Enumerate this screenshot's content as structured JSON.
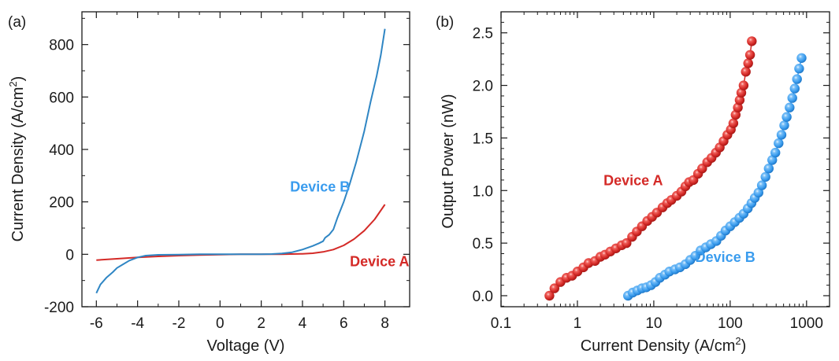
{
  "colors": {
    "device_a": "#d42a27",
    "device_b_line": "#2f86c4",
    "device_b_marker": "#3a9cee",
    "axis": "#1a1a1a"
  },
  "chart_data": [
    {
      "panel": "(a)",
      "type": "line",
      "title": "",
      "xlabel": "Voltage (V)",
      "ylabel": "Current Density (A/cm",
      "ylabel_sup": "2",
      "ylabel_tail": ")",
      "xlim": [
        -6.7,
        9.2
      ],
      "ylim": [
        -200,
        925
      ],
      "xticks": [
        -6,
        -4,
        -2,
        0,
        2,
        4,
        6,
        8
      ],
      "xtick_labels": [
        "-6",
        "-4",
        "-2",
        "0",
        "2",
        "4",
        "6",
        "8"
      ],
      "yticks": [
        -200,
        0,
        200,
        400,
        600,
        800
      ],
      "ytick_labels": [
        "-200",
        "0",
        "200",
        "400",
        "600",
        "800"
      ],
      "grid": false,
      "legend": "none",
      "annotations": [
        {
          "text": "Device B",
          "series": "Device B",
          "x": 3.4,
          "y": 240
        },
        {
          "text": "Device A",
          "series": "Device A",
          "x": 6.3,
          "y": -45
        }
      ],
      "series": [
        {
          "name": "Device A",
          "x": [
            -6,
            -5,
            -4,
            -3,
            -2,
            -1,
            0,
            1,
            2,
            3,
            4,
            4.5,
            5,
            5.5,
            6,
            6.5,
            7,
            7.5,
            8
          ],
          "y": [
            -22,
            -17,
            -12,
            -8,
            -5,
            -3,
            -1,
            0,
            0,
            0,
            2,
            4,
            9,
            18,
            34,
            58,
            90,
            133,
            190
          ]
        },
        {
          "name": "Device B",
          "x": [
            -6,
            -5.8,
            -5.5,
            -5.2,
            -5,
            -4.7,
            -4.4,
            -4,
            -3.6,
            -3,
            -2,
            -1,
            0,
            1,
            2,
            2.5,
            3,
            3.5,
            4,
            4.5,
            4.8,
            5,
            5.1,
            5.3,
            5.5,
            5.7,
            6,
            6.3,
            6.6,
            7,
            7.3,
            7.6,
            7.8,
            8
          ],
          "y": [
            -148,
            -115,
            -88,
            -68,
            -52,
            -38,
            -24,
            -12,
            -5,
            -2,
            -1,
            0,
            0,
            0,
            0,
            1,
            3,
            8,
            18,
            32,
            42,
            50,
            63,
            75,
            95,
            140,
            200,
            270,
            350,
            470,
            580,
            680,
            760,
            860
          ]
        }
      ]
    },
    {
      "panel": "(b)",
      "type": "scatter",
      "title": "",
      "xlabel": "Current Density (A/cm",
      "xlabel_sup": "2",
      "xlabel_tail": ")",
      "ylabel": "Output Power (nW)",
      "xscale": "log",
      "xlim": [
        0.1,
        2000
      ],
      "ylim": [
        -0.105,
        2.7
      ],
      "xticks": [
        0.1,
        1,
        10,
        100,
        1000
      ],
      "xtick_labels": [
        "0.1",
        "1",
        "10",
        "100",
        "1000"
      ],
      "yticks": [
        0.0,
        0.5,
        1.0,
        1.5,
        2.0,
        2.5
      ],
      "ytick_labels": [
        "0.0",
        "0.5",
        "1.0",
        "1.5",
        "2.0",
        "2.5"
      ],
      "grid": false,
      "legend": "none",
      "annotations": [
        {
          "text": "Device A",
          "series": "Device A",
          "x": 2.2,
          "y": 1.05
        },
        {
          "text": "Device B",
          "series": "Device B",
          "x": 35,
          "y": 0.32
        }
      ],
      "series": [
        {
          "name": "Device A",
          "x": [
            0.43,
            0.5,
            0.6,
            0.72,
            0.85,
            1.0,
            1.2,
            1.4,
            1.7,
            2.0,
            2.3,
            2.7,
            3.2,
            3.8,
            4.4,
            5.2,
            6.0,
            7.0,
            8.2,
            9.5,
            11,
            13,
            15,
            17,
            20,
            23,
            26,
            29,
            33,
            38,
            43,
            50,
            57,
            65,
            73,
            82,
            92,
            102,
            110,
            118,
            126,
            133,
            140,
            150,
            160,
            172,
            182,
            192
          ],
          "y": [
            0.0,
            0.07,
            0.13,
            0.17,
            0.19,
            0.23,
            0.27,
            0.31,
            0.33,
            0.37,
            0.39,
            0.42,
            0.45,
            0.48,
            0.5,
            0.56,
            0.61,
            0.66,
            0.71,
            0.75,
            0.79,
            0.84,
            0.88,
            0.91,
            0.95,
            0.99,
            1.04,
            1.08,
            1.1,
            1.16,
            1.21,
            1.27,
            1.31,
            1.36,
            1.41,
            1.47,
            1.53,
            1.58,
            1.64,
            1.72,
            1.79,
            1.86,
            1.93,
            2.0,
            2.13,
            2.21,
            2.29,
            2.42
          ]
        },
        {
          "name": "Device B",
          "x": [
            4.6,
            5.3,
            6.1,
            7.0,
            8.0,
            9.2,
            10.5,
            12,
            14,
            16,
            19,
            22,
            26,
            30,
            35,
            41,
            48,
            56,
            66,
            76,
            87,
            100,
            115,
            132,
            150,
            170,
            190,
            210,
            235,
            260,
            290,
            320,
            355,
            390,
            430,
            470,
            510,
            550,
            600,
            650,
            700,
            750,
            800,
            860
          ],
          "y": [
            0.0,
            0.03,
            0.05,
            0.07,
            0.08,
            0.1,
            0.13,
            0.17,
            0.2,
            0.23,
            0.25,
            0.27,
            0.3,
            0.34,
            0.38,
            0.43,
            0.46,
            0.49,
            0.52,
            0.57,
            0.62,
            0.66,
            0.7,
            0.74,
            0.78,
            0.83,
            0.88,
            0.93,
            0.98,
            1.05,
            1.13,
            1.21,
            1.29,
            1.36,
            1.45,
            1.53,
            1.62,
            1.7,
            1.79,
            1.88,
            1.97,
            2.06,
            2.16,
            2.26
          ]
        }
      ]
    }
  ]
}
